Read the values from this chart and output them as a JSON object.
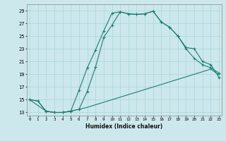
{
  "xlabel": "Humidex (Indice chaleur)",
  "bg_color": "#cce8ec",
  "grid_color": "#aad4d8",
  "line_color": "#1e7d70",
  "line1_x": [
    0,
    1,
    2,
    3,
    4,
    5,
    6,
    7,
    8,
    9,
    10,
    11,
    12,
    13,
    14,
    15,
    16,
    17,
    18,
    19,
    20,
    21,
    22,
    23
  ],
  "line1_y": [
    15,
    14.8,
    13.2,
    13.0,
    13.0,
    13.2,
    13.5,
    13.8,
    14.2,
    14.6,
    15.0,
    15.4,
    15.8,
    16.2,
    16.6,
    17.0,
    17.4,
    17.8,
    18.2,
    18.6,
    19.0,
    19.4,
    19.8,
    18.9
  ],
  "line2_x": [
    0,
    1,
    2,
    3,
    4,
    5,
    6,
    7,
    8,
    9,
    10,
    11,
    12,
    13,
    14,
    15,
    16,
    17,
    18,
    19,
    20,
    21,
    22,
    23
  ],
  "line2_y": [
    15,
    14.8,
    13.2,
    13.0,
    13.0,
    13.2,
    13.5,
    16.3,
    20.1,
    24.8,
    26.7,
    28.8,
    28.5,
    28.4,
    28.5,
    28.9,
    27.2,
    26.4,
    25.0,
    23.2,
    23.0,
    21.0,
    20.5,
    18.5
  ],
  "line3_x": [
    0,
    2,
    3,
    4,
    5,
    6,
    7,
    8,
    9,
    10,
    11,
    12,
    13,
    14,
    15,
    16,
    17,
    18,
    19,
    20,
    21,
    22,
    23
  ],
  "line3_y": [
    15,
    13.2,
    13.0,
    13.0,
    13.2,
    16.5,
    20.0,
    22.8,
    25.8,
    28.6,
    28.8,
    28.5,
    28.4,
    28.5,
    28.9,
    27.2,
    26.4,
    25.0,
    23.0,
    21.5,
    20.5,
    20.0,
    19.2
  ],
  "xlim": [
    0,
    23
  ],
  "ylim": [
    12.5,
    30
  ],
  "yticks": [
    13,
    15,
    17,
    19,
    21,
    23,
    25,
    27,
    29
  ],
  "xticks": [
    0,
    1,
    2,
    3,
    4,
    5,
    6,
    7,
    8,
    9,
    10,
    11,
    12,
    13,
    14,
    15,
    16,
    17,
    18,
    19,
    20,
    21,
    22,
    23
  ]
}
